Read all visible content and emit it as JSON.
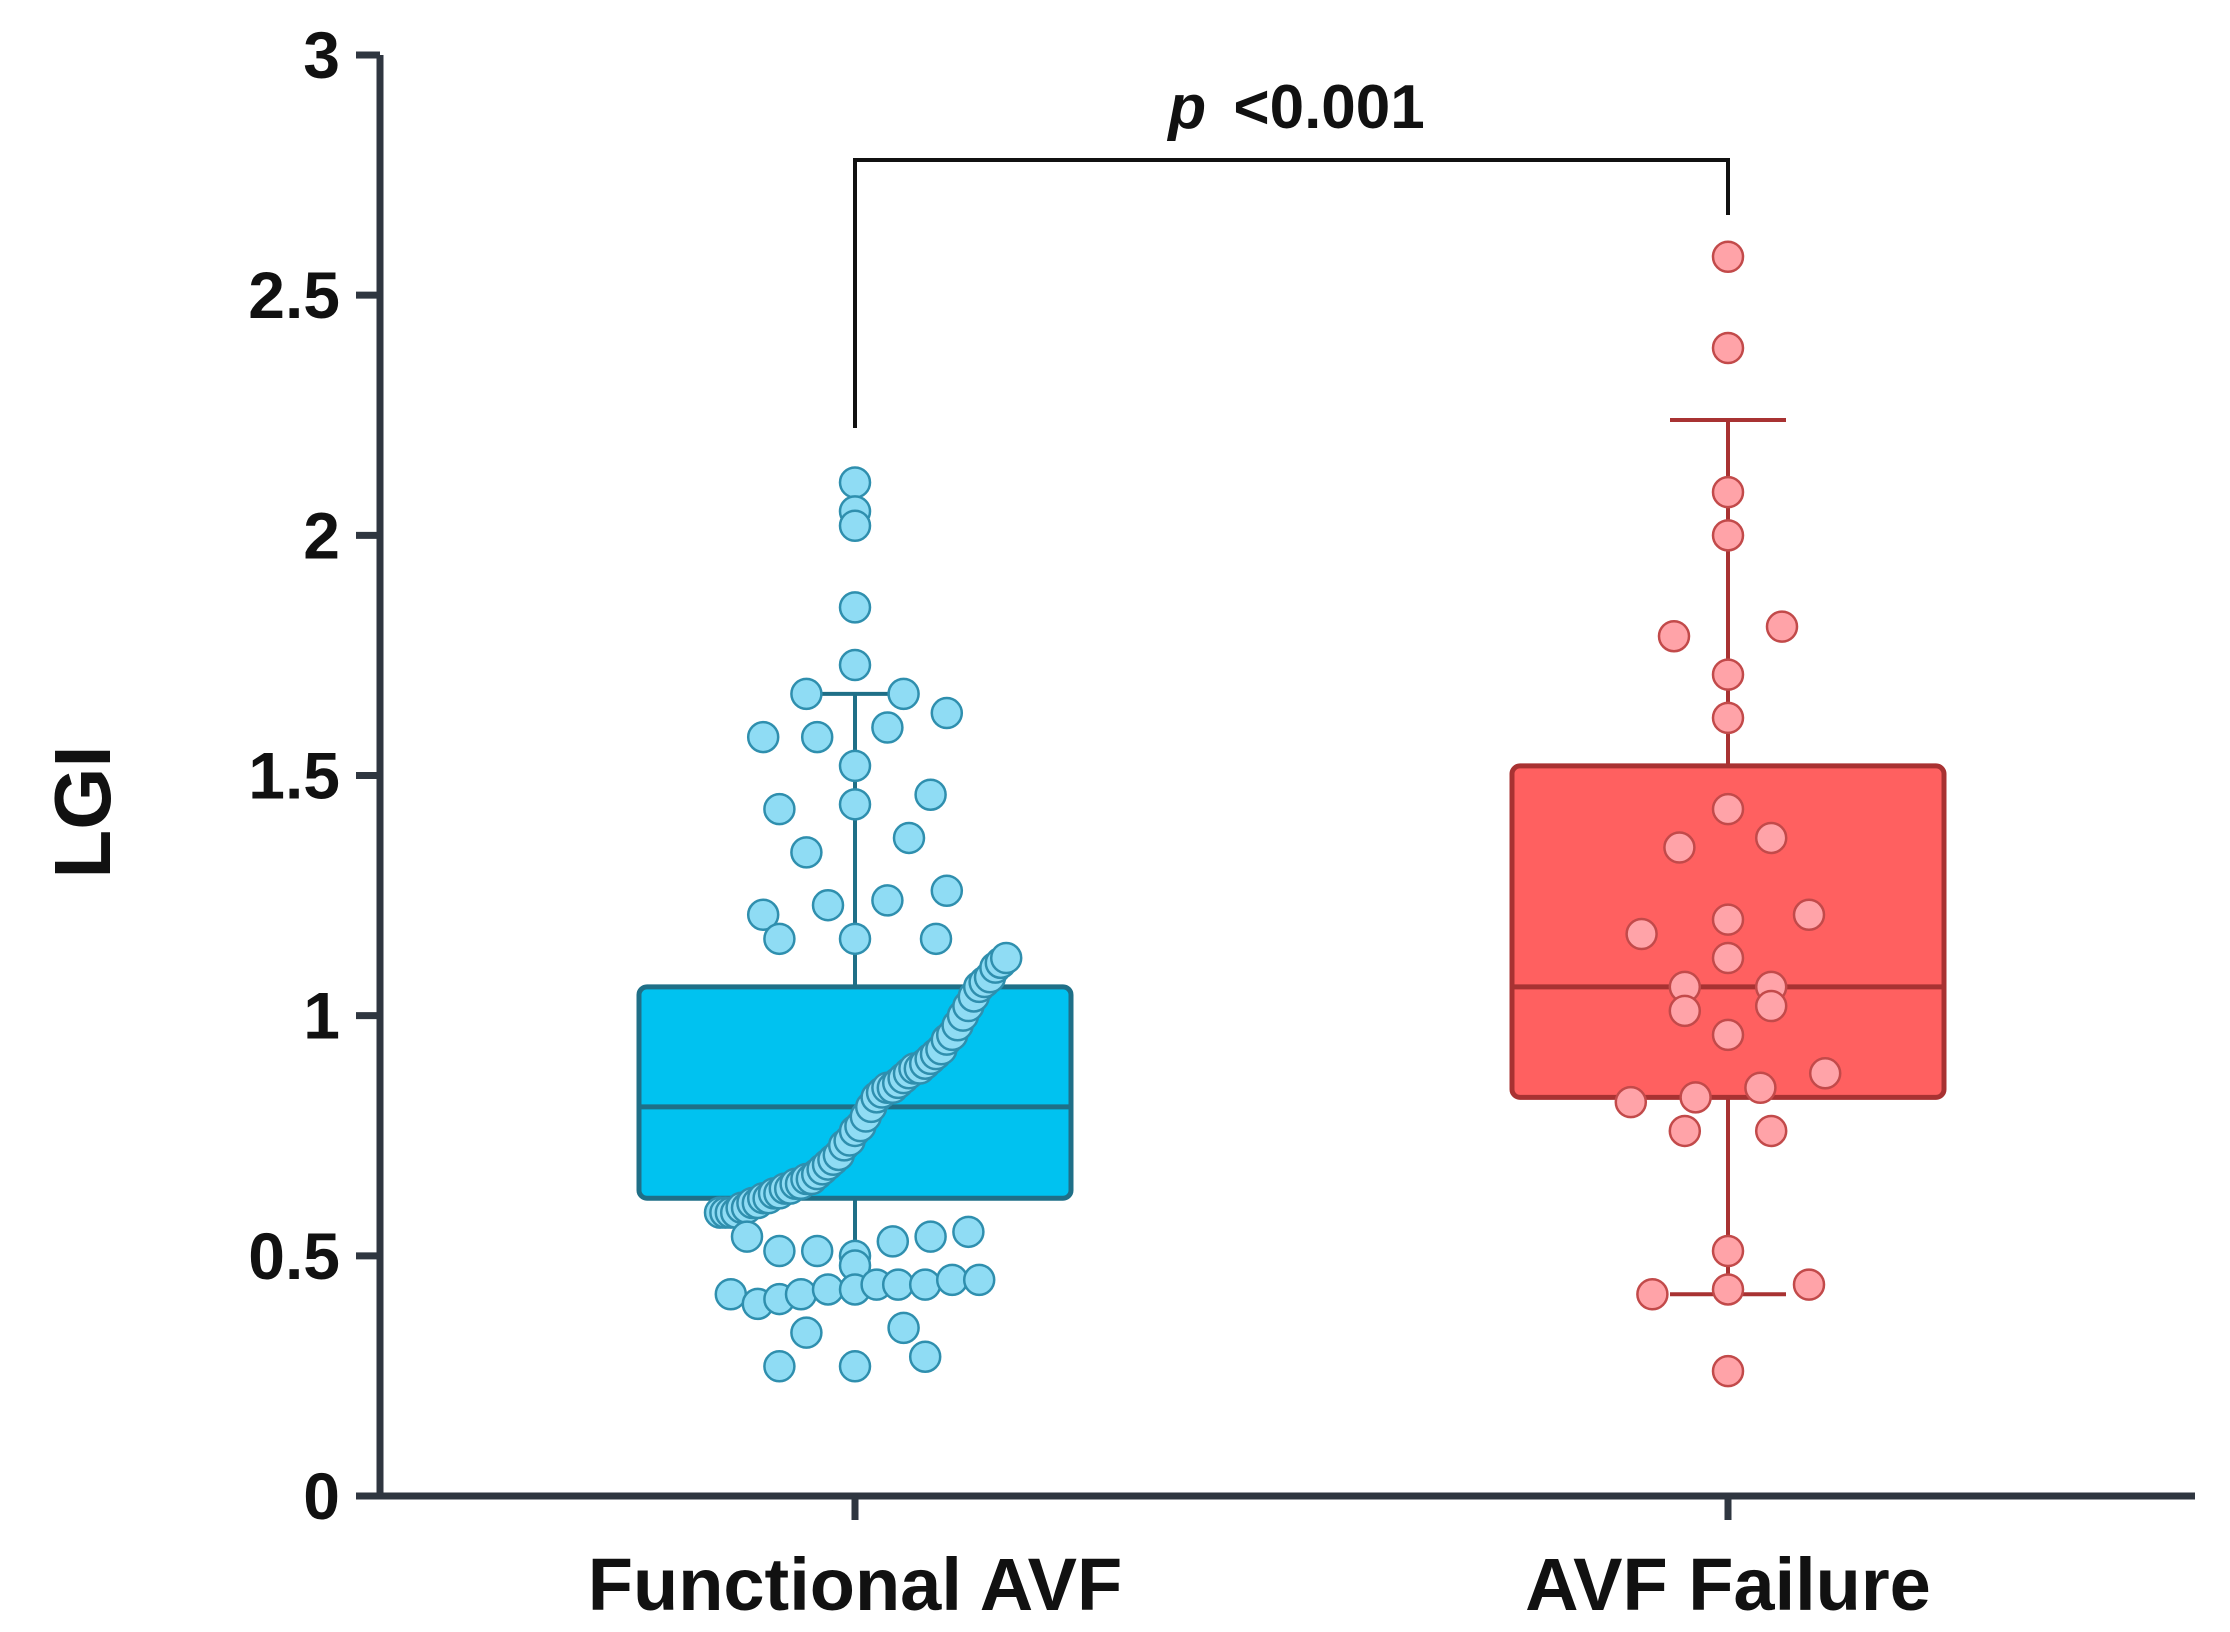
{
  "chart_data": {
    "type": "box",
    "ylabel": "LGI",
    "ylim": [
      0,
      3
    ],
    "yticks": [
      "0",
      "0.5",
      "1",
      "1.5",
      "2",
      "2.5",
      "3"
    ],
    "grid": false,
    "annotation": {
      "p_symbol": "p",
      "p_text": "<0.001"
    },
    "axis_color": "#2f3640",
    "series": [
      {
        "category": "Functional AVF",
        "fill": "#00c2f0",
        "edge": "#1f6f87",
        "point_fill": "#8fdcf4",
        "point_edge": "#2f8fae",
        "box": {
          "whisker_low": 0.43,
          "q1": 0.62,
          "median": 0.81,
          "q3": 1.06,
          "whisker_high": 1.67
        },
        "points": [
          [
            -0.25,
            0.59
          ],
          [
            -0.24,
            0.59
          ],
          [
            -0.23,
            0.59
          ],
          [
            -0.22,
            0.59
          ],
          [
            -0.21,
            0.6
          ],
          [
            -0.2,
            0.6
          ],
          [
            -0.19,
            0.61
          ],
          [
            -0.18,
            0.61
          ],
          [
            -0.17,
            0.62
          ],
          [
            -0.16,
            0.62
          ],
          [
            -0.15,
            0.63
          ],
          [
            -0.14,
            0.63
          ],
          [
            -0.13,
            0.64
          ],
          [
            -0.12,
            0.64
          ],
          [
            -0.11,
            0.65
          ],
          [
            -0.1,
            0.65
          ],
          [
            -0.09,
            0.66
          ],
          [
            -0.08,
            0.66
          ],
          [
            -0.07,
            0.67
          ],
          [
            -0.06,
            0.68
          ],
          [
            -0.05,
            0.69
          ],
          [
            -0.04,
            0.7
          ],
          [
            -0.03,
            0.71
          ],
          [
            -0.02,
            0.73
          ],
          [
            -0.01,
            0.74
          ],
          [
            0.0,
            0.76
          ],
          [
            0.01,
            0.77
          ],
          [
            0.02,
            0.79
          ],
          [
            0.03,
            0.81
          ],
          [
            0.04,
            0.83
          ],
          [
            0.05,
            0.84
          ],
          [
            0.06,
            0.85
          ],
          [
            0.07,
            0.85
          ],
          [
            0.08,
            0.86
          ],
          [
            0.09,
            0.87
          ],
          [
            0.1,
            0.88
          ],
          [
            0.11,
            0.89
          ],
          [
            0.12,
            0.89
          ],
          [
            0.13,
            0.9
          ],
          [
            0.14,
            0.91
          ],
          [
            0.15,
            0.92
          ],
          [
            0.16,
            0.93
          ],
          [
            0.17,
            0.95
          ],
          [
            0.18,
            0.96
          ],
          [
            0.19,
            0.98
          ],
          [
            0.2,
            1.0
          ],
          [
            0.21,
            1.02
          ],
          [
            0.22,
            1.04
          ],
          [
            0.23,
            1.06
          ],
          [
            0.24,
            1.07
          ],
          [
            0.25,
            1.08
          ],
          [
            0.26,
            1.1
          ],
          [
            0.27,
            1.11
          ],
          [
            0.28,
            1.12
          ],
          [
            0.0,
            2.11
          ],
          [
            0.0,
            2.05
          ],
          [
            0.0,
            2.02
          ],
          [
            0.0,
            1.85
          ],
          [
            0.0,
            1.73
          ],
          [
            -0.09,
            1.67
          ],
          [
            0.09,
            1.67
          ],
          [
            -0.17,
            1.58
          ],
          [
            -0.07,
            1.58
          ],
          [
            0.06,
            1.6
          ],
          [
            0.17,
            1.63
          ],
          [
            0.0,
            1.52
          ],
          [
            0.0,
            1.44
          ],
          [
            -0.14,
            1.43
          ],
          [
            0.14,
            1.46
          ],
          [
            -0.09,
            1.34
          ],
          [
            0.1,
            1.37
          ],
          [
            -0.05,
            1.23
          ],
          [
            0.06,
            1.24
          ],
          [
            -0.17,
            1.21
          ],
          [
            -0.14,
            1.16
          ],
          [
            0.0,
            1.16
          ],
          [
            0.15,
            1.16
          ],
          [
            0.17,
            1.26
          ],
          [
            -0.2,
            0.54
          ],
          [
            -0.14,
            0.51
          ],
          [
            -0.07,
            0.51
          ],
          [
            0.0,
            0.5
          ],
          [
            0.0,
            0.48
          ],
          [
            0.07,
            0.53
          ],
          [
            0.14,
            0.54
          ],
          [
            0.21,
            0.55
          ],
          [
            -0.23,
            0.42
          ],
          [
            -0.18,
            0.4
          ],
          [
            -0.14,
            0.41
          ],
          [
            -0.1,
            0.42
          ],
          [
            -0.05,
            0.43
          ],
          [
            0.0,
            0.43
          ],
          [
            0.04,
            0.44
          ],
          [
            0.08,
            0.44
          ],
          [
            0.13,
            0.44
          ],
          [
            0.18,
            0.45
          ],
          [
            0.23,
            0.45
          ],
          [
            -0.14,
            0.27
          ],
          [
            -0.09,
            0.34
          ],
          [
            0.0,
            0.27
          ],
          [
            0.09,
            0.35
          ],
          [
            0.13,
            0.29
          ]
        ]
      },
      {
        "category": "AVF Failure",
        "fill": "#ff6060",
        "edge": "#a83232",
        "point_fill": "#ffa3a8",
        "point_edge": "#c24a4a",
        "box": {
          "whisker_low": 0.42,
          "q1": 0.83,
          "median": 1.06,
          "q3": 1.52,
          "whisker_high": 2.24
        },
        "points": [
          [
            0.0,
            2.58
          ],
          [
            0.0,
            2.39
          ],
          [
            0.0,
            2.09
          ],
          [
            0.0,
            2.0
          ],
          [
            -0.1,
            1.79
          ],
          [
            0.1,
            1.81
          ],
          [
            0.0,
            1.71
          ],
          [
            0.0,
            1.62
          ],
          [
            0.0,
            1.43
          ],
          [
            -0.09,
            1.35
          ],
          [
            0.08,
            1.37
          ],
          [
            0.0,
            1.2
          ],
          [
            0.0,
            1.12
          ],
          [
            -0.16,
            1.17
          ],
          [
            0.15,
            1.21
          ],
          [
            -0.08,
            1.06
          ],
          [
            0.08,
            1.06
          ],
          [
            -0.08,
            1.01
          ],
          [
            0.08,
            1.02
          ],
          [
            0.0,
            0.96
          ],
          [
            0.18,
            0.88
          ],
          [
            -0.18,
            0.82
          ],
          [
            -0.06,
            0.83
          ],
          [
            0.06,
            0.85
          ],
          [
            -0.08,
            0.76
          ],
          [
            0.08,
            0.76
          ],
          [
            0.0,
            0.51
          ],
          [
            -0.14,
            0.42
          ],
          [
            0.0,
            0.43
          ],
          [
            0.15,
            0.44
          ],
          [
            0.0,
            0.26
          ]
        ]
      }
    ]
  }
}
